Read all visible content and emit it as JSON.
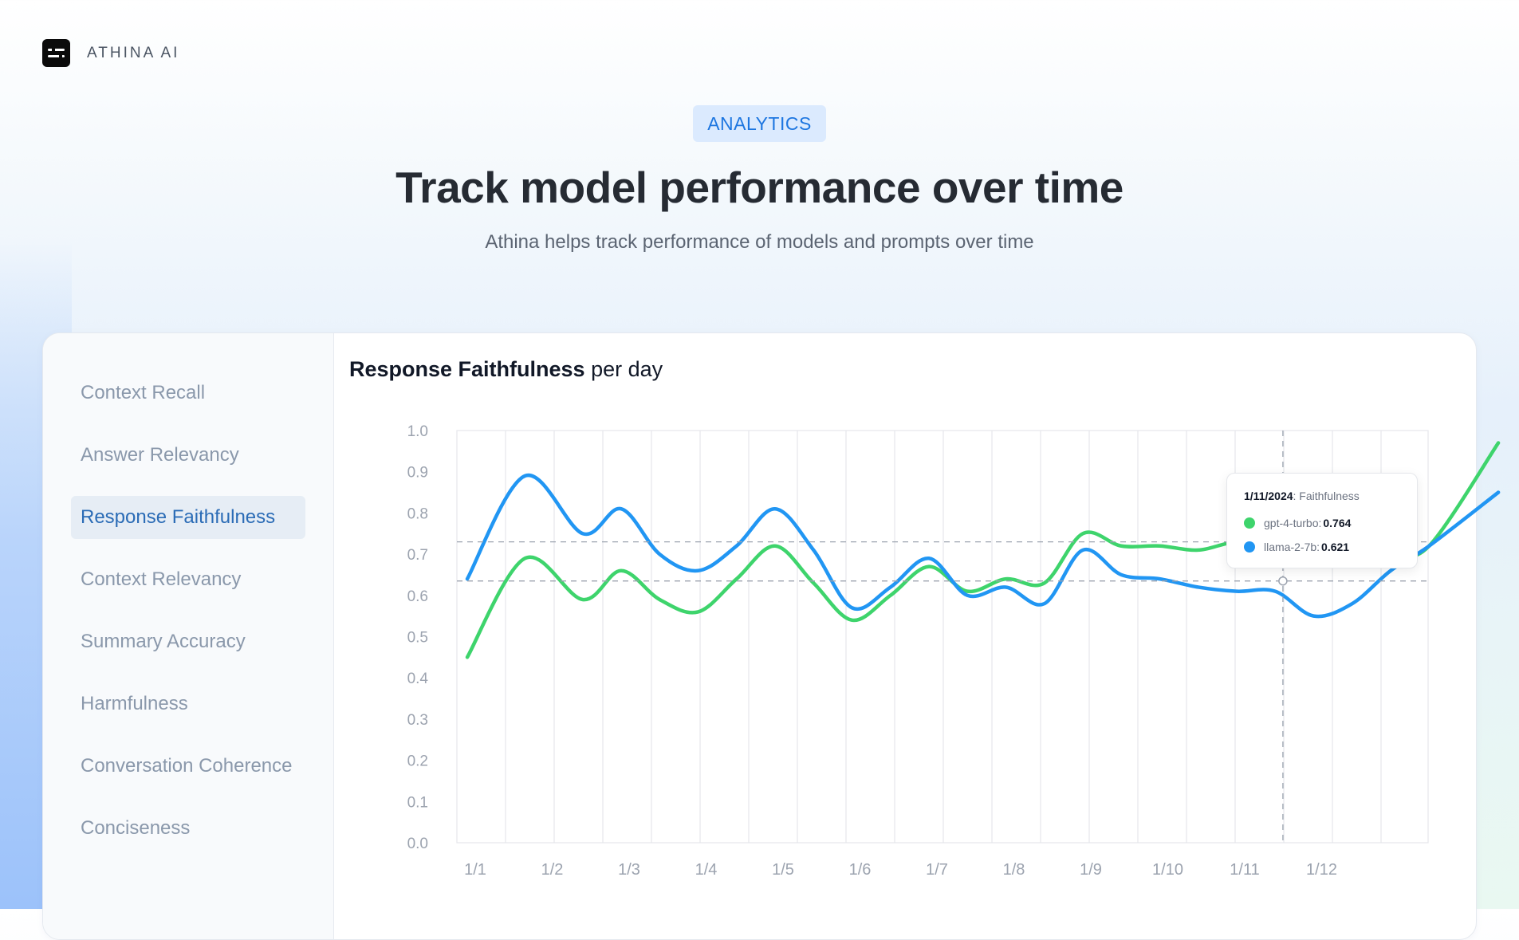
{
  "brand": {
    "name": "ATHINA AI",
    "logo_icon": "athina-logo-icon"
  },
  "hero": {
    "badge": "ANALYTICS",
    "title": "Track model performance over time",
    "subtitle": "Athina helps track performance of models and prompts over time"
  },
  "sidebar": {
    "active": "Response Faithfulness",
    "items": [
      {
        "label": "Context Recall"
      },
      {
        "label": "Answer Relevancy"
      },
      {
        "label": "Response Faithfulness"
      },
      {
        "label": "Context Relevancy"
      },
      {
        "label": "Summary Accuracy"
      },
      {
        "label": "Harmfulness"
      },
      {
        "label": "Conversation Coherence"
      },
      {
        "label": "Conciseness"
      }
    ]
  },
  "colors": {
    "gpt": "#3ed46c",
    "llama": "#2196f3",
    "accent": "#1d76e0",
    "active_bg": "#e6edf5"
  },
  "chart_data": {
    "type": "line",
    "title_bold": "Response Faithfulness",
    "title_rest": " per day",
    "xlabel": "",
    "ylabel": "",
    "ylim": [
      0,
      1
    ],
    "grid": true,
    "yticks": [
      "0.0",
      "0.1",
      "0.2",
      "0.3",
      "0.4",
      "0.5",
      "0.6",
      "0.7",
      "0.8",
      "0.9",
      "1.0"
    ],
    "xticks": [
      "1/1",
      "1/2",
      "1/3",
      "1/4",
      "1/5",
      "1/6",
      "1/7",
      "1/8",
      "1/9",
      "1/10",
      "1/11",
      "1/12"
    ],
    "x": [
      1,
      1.75,
      2.5,
      3,
      3.5,
      4,
      4.5,
      5,
      5.5,
      6,
      6.5,
      7,
      7.5,
      8,
      8.5,
      9,
      9.5,
      10,
      10.5,
      11,
      11.5,
      12,
      12.5,
      13,
      13.5,
      14.4
    ],
    "series": [
      {
        "name": "gpt-4-turbo",
        "values": [
          0.45,
          0.69,
          0.59,
          0.66,
          0.59,
          0.56,
          0.64,
          0.72,
          0.63,
          0.54,
          0.6,
          0.67,
          0.61,
          0.64,
          0.63,
          0.75,
          0.72,
          0.72,
          0.71,
          0.73,
          0.72,
          0.74,
          0.69,
          0.7,
          0.72,
          0.97
        ]
      },
      {
        "name": "llama-2-7b",
        "values": [
          0.64,
          0.89,
          0.75,
          0.81,
          0.7,
          0.66,
          0.72,
          0.81,
          0.71,
          0.57,
          0.62,
          0.69,
          0.6,
          0.62,
          0.58,
          0.71,
          0.65,
          0.64,
          0.62,
          0.61,
          0.61,
          0.55,
          0.58,
          0.66,
          0.72,
          0.85
        ]
      }
    ],
    "tooltip": {
      "date": "1/11/2024",
      "metric": ": Faithfulness",
      "x": 11.6,
      "rows": [
        {
          "name": "gpt-4-turbo",
          "sep": ":",
          "value": "0.764",
          "y": 0.73
        },
        {
          "name": "llama-2-7b",
          "sep": ":",
          "value": "0.621",
          "y": 0.635
        }
      ]
    }
  }
}
